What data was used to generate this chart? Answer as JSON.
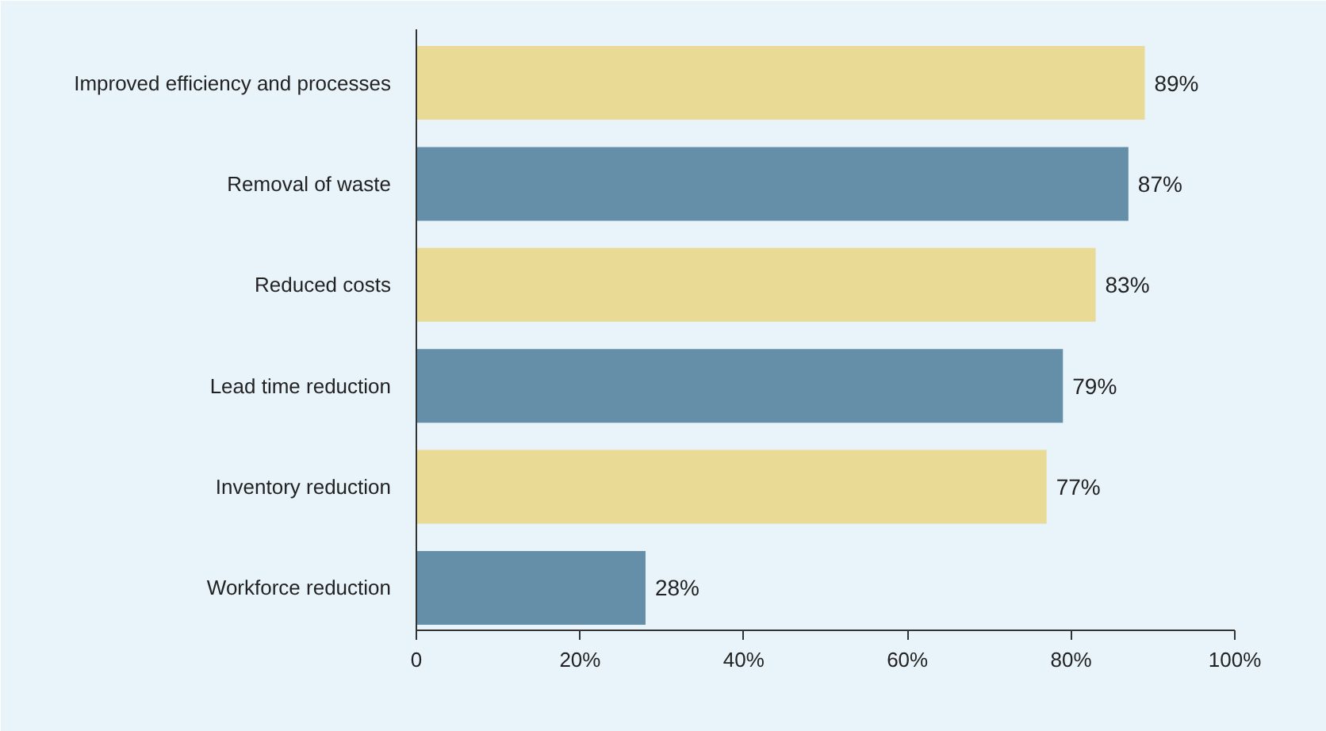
{
  "chart_data": {
    "type": "bar",
    "orientation": "horizontal",
    "categories": [
      "Improved efficiency and processes",
      "Removal of waste",
      "Reduced costs",
      "Lead time reduction",
      "Inventory reduction",
      "Workforce reduction"
    ],
    "values": [
      89,
      87,
      83,
      79,
      77,
      28
    ],
    "colors": [
      "#e9da96",
      "#658ea8",
      "#e9da96",
      "#658ea8",
      "#e9da96",
      "#658ea8"
    ],
    "value_labels": [
      "89%",
      "87%",
      "83%",
      "79%",
      "77%",
      "28%"
    ],
    "xlim": [
      0,
      100
    ],
    "xticks": [
      0,
      {
        "value": 20,
        "label": "20%"
      },
      {
        "value": 40,
        "label": "40%"
      },
      {
        "value": 60,
        "label": "60%"
      },
      {
        "value": 80,
        "label": "80%"
      },
      {
        "value": 100,
        "label": "100%"
      }
    ],
    "grid": false
  }
}
